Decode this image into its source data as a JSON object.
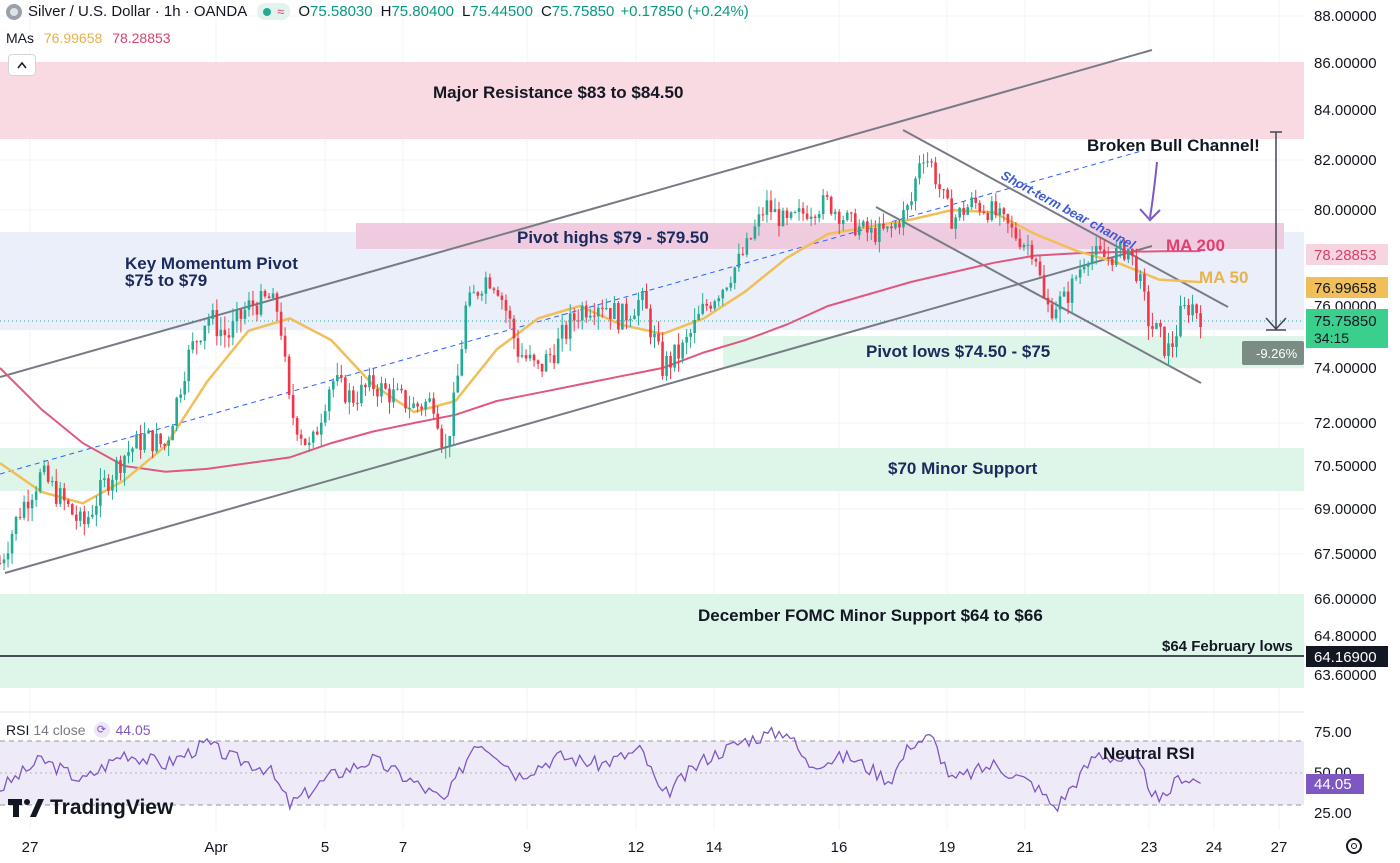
{
  "header": {
    "symbol": "Silver / U.S. Dollar · 1h · OANDA",
    "o_label": "O",
    "o": "75.58030",
    "h_label": "H",
    "h": "75.80400",
    "l_label": "L",
    "l": "75.44500",
    "c_label": "C",
    "c": "75.75850",
    "change": "+0.17850 (+0.24%)"
  },
  "mas": {
    "label": "MAs",
    "ma50": "76.99658",
    "ma200": "78.28853"
  },
  "rsi_legend": {
    "label": "RSI",
    "params": "14 close",
    "value": "44.05"
  },
  "logo_text": "TradingView",
  "colors": {
    "up": "#22ab94",
    "down": "#f23645",
    "ma50": "#f0bf5a",
    "ma200": "#e0587e",
    "rsi": "#7e57c2",
    "resistance_zone": "#f8d4de",
    "support_zone": "#dcf5e8",
    "pivot_zone": "#e6ebf9",
    "pivot_high_zone": "#efc6dd",
    "channel": "#787b86"
  },
  "annotations": {
    "major_resistance": "Major Resistance $83 to $84.50",
    "key_pivot_1": "Key Momentum Pivot",
    "key_pivot_2": "$75 to $79",
    "pivot_highs": "Pivot highs $79 - $79.50",
    "broken_bull": "Broken Bull Channel!",
    "bear_channel": "Short-term bear channel",
    "ma200": "MA 200",
    "ma50": "MA 50",
    "pivot_lows": "Pivot lows $74.50 - $75",
    "minor_support": "$70 Minor Support",
    "fomc_support": "December FOMC Minor Support $64 to $66",
    "feb_lows": "$64 February lows",
    "neutral_rsi": "Neutral RSI",
    "measure_pct": "-9.26%"
  },
  "price_tags": {
    "ma200": "78.28853",
    "ma50": "76.99658",
    "last": "75.75850",
    "countdown": "34:15",
    "feb_low": "64.16900",
    "rsi": "44.05"
  },
  "chart_data": {
    "type": "candlestick",
    "title": "Silver / U.S. Dollar · 1h · OANDA",
    "price_axis_ticks": [
      88,
      86,
      84,
      82,
      80,
      78,
      76,
      74,
      72,
      70.5,
      69,
      67.5,
      66,
      64.8,
      63.6
    ],
    "price_axis_labels": [
      "88.00000",
      "86.00000",
      "84.00000",
      "82.00000",
      "80.00000",
      "78.00000",
      "76.00000",
      "74.00000",
      "72.00000",
      "70.50000",
      "69.00000",
      "67.50000",
      "66.00000",
      "64.80000",
      "63.60000"
    ],
    "x_tick_labels": [
      "27",
      "Apr",
      "5",
      "7",
      "9",
      "12",
      "14",
      "16",
      "19",
      "21",
      "23",
      "24",
      "27"
    ],
    "zones": [
      {
        "name": "Major Resistance",
        "low": 83,
        "high": 84.5
      },
      {
        "name": "Key Momentum Pivot",
        "low": 75,
        "high": 79
      },
      {
        "name": "Pivot highs",
        "low": 79,
        "high": 79.5
      },
      {
        "name": "Pivot lows",
        "low": 74.5,
        "high": 75
      },
      {
        "name": "$70 Minor Support",
        "low": 69.5,
        "high": 70.5
      },
      {
        "name": "December FOMC Minor Support",
        "low": 64,
        "high": 66
      }
    ],
    "horizontal_lines": [
      {
        "name": "$64 February lows",
        "value": 64.169
      }
    ],
    "close_path": [
      [
        0,
        67.2
      ],
      [
        0.02,
        69.0
      ],
      [
        0.04,
        70.2
      ],
      [
        0.06,
        69.3
      ],
      [
        0.08,
        68.4
      ],
      [
        0.1,
        69.8
      ],
      [
        0.12,
        70.9
      ],
      [
        0.14,
        71.5
      ],
      [
        0.16,
        71.2
      ],
      [
        0.18,
        74.2
      ],
      [
        0.2,
        75.7
      ],
      [
        0.22,
        75.0
      ],
      [
        0.24,
        76.0
      ],
      [
        0.26,
        76.3
      ],
      [
        0.27,
        75.8
      ],
      [
        0.28,
        72.5
      ],
      [
        0.3,
        71.0
      ],
      [
        0.32,
        73.6
      ],
      [
        0.34,
        72.9
      ],
      [
        0.36,
        73.4
      ],
      [
        0.38,
        73.0
      ],
      [
        0.4,
        72.6
      ],
      [
        0.42,
        72.8
      ],
      [
        0.43,
        70.9
      ],
      [
        0.44,
        73.0
      ],
      [
        0.45,
        75.9
      ],
      [
        0.47,
        77.2
      ],
      [
        0.48,
        76.9
      ],
      [
        0.5,
        74.6
      ],
      [
        0.52,
        73.9
      ],
      [
        0.54,
        74.8
      ],
      [
        0.56,
        75.9
      ],
      [
        0.58,
        76.2
      ],
      [
        0.6,
        75.6
      ],
      [
        0.62,
        76.3
      ],
      [
        0.64,
        74.0
      ],
      [
        0.66,
        74.6
      ],
      [
        0.68,
        75.9
      ],
      [
        0.7,
        76.9
      ],
      [
        0.72,
        78.3
      ],
      [
        0.74,
        80.2
      ],
      [
        0.76,
        79.4
      ],
      [
        0.78,
        80.0
      ],
      [
        0.8,
        80.3
      ],
      [
        0.82,
        79.5
      ],
      [
        0.84,
        79.0
      ],
      [
        0.86,
        79.1
      ],
      [
        0.88,
        80.2
      ],
      [
        0.89,
        82.4
      ],
      [
        0.9,
        81.8
      ],
      [
        0.91,
        80.6
      ],
      [
        0.92,
        79.6
      ],
      [
        0.94,
        80.3
      ],
      [
        0.96,
        79.9
      ],
      [
        0.98,
        79.0
      ],
      [
        1.0,
        78.3
      ],
      [
        1.01,
        75.9
      ],
      [
        1.03,
        76.3
      ],
      [
        1.05,
        78.2
      ],
      [
        1.07,
        78.0
      ],
      [
        1.09,
        78.4
      ],
      [
        1.1,
        77.2
      ],
      [
        1.11,
        75.5
      ],
      [
        1.13,
        74.5
      ],
      [
        1.14,
        75.6
      ],
      [
        1.15,
        76.1
      ],
      [
        1.16,
        75.76
      ]
    ],
    "ma50_path": [
      [
        0,
        70.6
      ],
      [
        0.04,
        69.6
      ],
      [
        0.08,
        69.2
      ],
      [
        0.12,
        70.0
      ],
      [
        0.16,
        71.2
      ],
      [
        0.2,
        73.5
      ],
      [
        0.24,
        75.2
      ],
      [
        0.28,
        75.6
      ],
      [
        0.32,
        74.9
      ],
      [
        0.36,
        73.4
      ],
      [
        0.4,
        72.4
      ],
      [
        0.44,
        72.8
      ],
      [
        0.48,
        74.6
      ],
      [
        0.52,
        75.6
      ],
      [
        0.56,
        76.0
      ],
      [
        0.6,
        75.4
      ],
      [
        0.64,
        75.1
      ],
      [
        0.68,
        75.6
      ],
      [
        0.72,
        76.6
      ],
      [
        0.76,
        78.0
      ],
      [
        0.8,
        79.0
      ],
      [
        0.84,
        79.3
      ],
      [
        0.88,
        79.6
      ],
      [
        0.92,
        80.0
      ],
      [
        0.96,
        79.9
      ],
      [
        1.0,
        79.0
      ],
      [
        1.04,
        78.3
      ],
      [
        1.08,
        77.8
      ],
      [
        1.12,
        77.1
      ],
      [
        1.16,
        76.99658
      ]
    ],
    "ma200_path": [
      [
        0,
        74.0
      ],
      [
        0.04,
        72.5
      ],
      [
        0.08,
        71.3
      ],
      [
        0.12,
        70.5
      ],
      [
        0.16,
        70.3
      ],
      [
        0.2,
        70.4
      ],
      [
        0.24,
        70.6
      ],
      [
        0.28,
        70.8
      ],
      [
        0.32,
        71.3
      ],
      [
        0.36,
        71.7
      ],
      [
        0.4,
        72.0
      ],
      [
        0.44,
        72.3
      ],
      [
        0.48,
        72.8
      ],
      [
        0.52,
        73.1
      ],
      [
        0.56,
        73.4
      ],
      [
        0.6,
        73.7
      ],
      [
        0.64,
        74.0
      ],
      [
        0.68,
        74.5
      ],
      [
        0.72,
        74.9
      ],
      [
        0.76,
        75.4
      ],
      [
        0.8,
        76.0
      ],
      [
        0.84,
        76.5
      ],
      [
        0.88,
        77.0
      ],
      [
        0.92,
        77.4
      ],
      [
        0.96,
        77.8
      ],
      [
        1.0,
        78.1
      ],
      [
        1.04,
        78.2
      ],
      [
        1.08,
        78.25
      ],
      [
        1.12,
        78.28
      ],
      [
        1.16,
        78.28853
      ]
    ],
    "rsi": {
      "params": "14 close",
      "last": 44.05,
      "ticks": [
        75,
        50,
        25
      ],
      "levels": [
        70,
        50,
        30
      ],
      "path": [
        [
          0,
          40
        ],
        [
          0.04,
          58
        ],
        [
          0.08,
          45
        ],
        [
          0.12,
          62
        ],
        [
          0.16,
          55
        ],
        [
          0.2,
          68
        ],
        [
          0.22,
          60
        ],
        [
          0.26,
          52
        ],
        [
          0.28,
          30
        ],
        [
          0.32,
          48
        ],
        [
          0.36,
          58
        ],
        [
          0.4,
          44
        ],
        [
          0.43,
          32
        ],
        [
          0.46,
          70
        ],
        [
          0.48,
          62
        ],
        [
          0.5,
          48
        ],
        [
          0.54,
          60
        ],
        [
          0.58,
          55
        ],
        [
          0.62,
          64
        ],
        [
          0.64,
          35
        ],
        [
          0.68,
          58
        ],
        [
          0.72,
          70
        ],
        [
          0.76,
          76
        ],
        [
          0.78,
          55
        ],
        [
          0.82,
          60
        ],
        [
          0.86,
          45
        ],
        [
          0.88,
          68
        ],
        [
          0.9,
          72
        ],
        [
          0.92,
          45
        ],
        [
          0.96,
          55
        ],
        [
          1.0,
          42
        ],
        [
          1.02,
          28
        ],
        [
          1.06,
          62
        ],
        [
          1.1,
          55
        ],
        [
          1.12,
          30
        ],
        [
          1.14,
          48
        ],
        [
          1.16,
          44.05
        ]
      ]
    }
  }
}
